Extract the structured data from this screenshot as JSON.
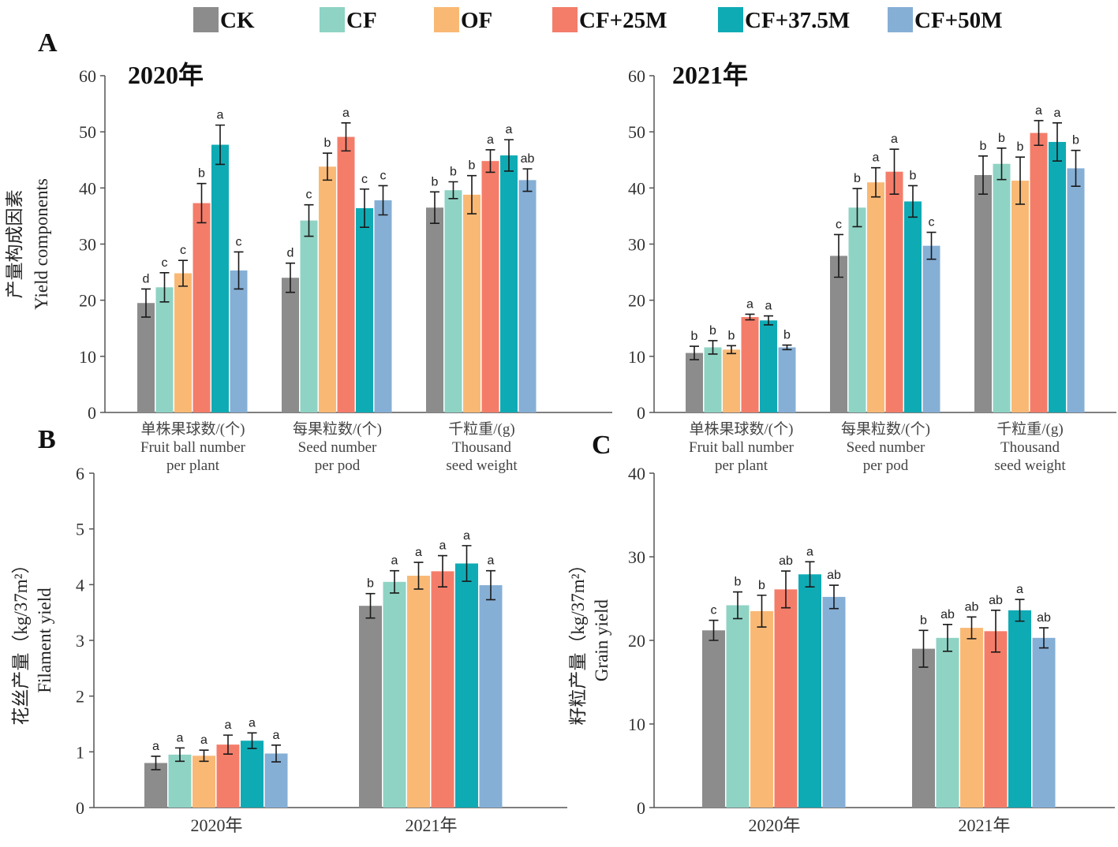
{
  "legend": [
    {
      "name": "CK",
      "color": "#8c8c8c"
    },
    {
      "name": "CF",
      "color": "#8fd3c4"
    },
    {
      "name": "OF",
      "color": "#f9b975"
    },
    {
      "name": "CF+25M",
      "color": "#f47d6a"
    },
    {
      "name": "CF+37.5M",
      "color": "#0fabb5"
    },
    {
      "name": "CF+50M",
      "color": "#86afd6"
    }
  ],
  "chart_data": [
    {
      "id": "A-2020",
      "panel_letter": "A",
      "type": "bar",
      "title": "2020年",
      "ylabel": "产量构成因素",
      "ylabel_en": "Yield components",
      "ylim": [
        0,
        60
      ],
      "yticks": [
        "0",
        "10",
        "20",
        "30",
        "40",
        "50",
        "60"
      ],
      "categories": [
        [
          "单株果球数/(个)",
          "Fruit ball number",
          "per plant"
        ],
        [
          "每果粒数/(个)",
          "Seed number",
          "per pod"
        ],
        [
          "千粒重/(g)",
          "Thousand",
          "seed weight"
        ]
      ],
      "series": [
        {
          "name": "CK",
          "values": [
            19.5,
            24,
            36.5
          ],
          "errors": [
            2.5,
            2.6,
            2.8
          ],
          "letters": [
            "d",
            "d",
            "b"
          ]
        },
        {
          "name": "CF",
          "values": [
            22.3,
            34.2,
            39.6
          ],
          "errors": [
            2.6,
            2.8,
            1.5
          ],
          "letters": [
            "c",
            "c",
            "b"
          ]
        },
        {
          "name": "OF",
          "values": [
            24.8,
            43.8,
            38.8
          ],
          "errors": [
            2.3,
            2.4,
            3.4
          ],
          "letters": [
            "c",
            "b",
            "b"
          ]
        },
        {
          "name": "CF+25M",
          "values": [
            37.3,
            49.1,
            44.8
          ],
          "errors": [
            3.5,
            2.5,
            2.0
          ],
          "letters": [
            "b",
            "a",
            "a"
          ]
        },
        {
          "name": "CF+37.5M",
          "values": [
            47.7,
            36.4,
            45.8
          ],
          "errors": [
            3.5,
            3.4,
            2.8
          ],
          "letters": [
            "a",
            "c",
            "a"
          ]
        },
        {
          "name": "CF+50M",
          "values": [
            25.3,
            37.8,
            41.4
          ],
          "errors": [
            3.3,
            2.6,
            2.0
          ],
          "letters": [
            "c",
            "c",
            "ab"
          ]
        }
      ]
    },
    {
      "id": "A-2021",
      "panel_letter": "",
      "type": "bar",
      "title": "2021年",
      "ylabel": "",
      "ylabel_en": "",
      "ylim": [
        0,
        60
      ],
      "yticks": [
        "0",
        "10",
        "20",
        "30",
        "40",
        "50",
        "60"
      ],
      "categories": [
        [
          "单株果球数/(个)",
          "Fruit ball number",
          "per plant"
        ],
        [
          "每果粒数/(个)",
          "Seed number",
          "per pod"
        ],
        [
          "千粒重/(g)",
          "Thousand",
          "seed weight"
        ]
      ],
      "series": [
        {
          "name": "CK",
          "values": [
            10.6,
            27.9,
            42.3
          ],
          "errors": [
            1.2,
            3.8,
            3.4
          ],
          "letters": [
            "b",
            "c",
            "b"
          ]
        },
        {
          "name": "CF",
          "values": [
            11.6,
            36.5,
            44.3
          ],
          "errors": [
            1.2,
            3.4,
            2.8
          ],
          "letters": [
            "b",
            "b",
            "b"
          ]
        },
        {
          "name": "OF",
          "values": [
            11.2,
            41.0,
            41.3
          ],
          "errors": [
            0.7,
            2.6,
            4.2
          ],
          "letters": [
            "b",
            "a",
            "b"
          ]
        },
        {
          "name": "CF+25M",
          "values": [
            17.0,
            42.9,
            49.8
          ],
          "errors": [
            0.5,
            4.0,
            2.2
          ],
          "letters": [
            "a",
            "a",
            "a"
          ]
        },
        {
          "name": "CF+37.5M",
          "values": [
            16.4,
            37.6,
            48.2
          ],
          "errors": [
            0.8,
            2.8,
            3.4
          ],
          "letters": [
            "a",
            "b",
            "a"
          ]
        },
        {
          "name": "CF+50M",
          "values": [
            11.6,
            29.7,
            43.5
          ],
          "errors": [
            0.4,
            2.4,
            3.2
          ],
          "letters": [
            "b",
            "c",
            "b"
          ]
        }
      ]
    },
    {
      "id": "B",
      "panel_letter": "B",
      "type": "bar",
      "title": "",
      "ylabel": "花丝产量（kg/37m²）",
      "ylabel_en": "Filament yield",
      "ylim": [
        0,
        6
      ],
      "yticks": [
        "0",
        "1",
        "2",
        "3",
        "4",
        "5",
        "6"
      ],
      "categories": [
        [
          "2020年"
        ],
        [
          "2021年"
        ]
      ],
      "series": [
        {
          "name": "CK",
          "values": [
            0.8,
            3.62
          ],
          "errors": [
            0.12,
            0.22
          ],
          "letters": [
            "a",
            "b"
          ]
        },
        {
          "name": "CF",
          "values": [
            0.95,
            4.05
          ],
          "errors": [
            0.12,
            0.2
          ],
          "letters": [
            "a",
            "a"
          ]
        },
        {
          "name": "OF",
          "values": [
            0.93,
            4.16
          ],
          "errors": [
            0.1,
            0.24
          ],
          "letters": [
            "a",
            "a"
          ]
        },
        {
          "name": "CF+25M",
          "values": [
            1.13,
            4.24
          ],
          "errors": [
            0.17,
            0.28
          ],
          "letters": [
            "a",
            "a"
          ]
        },
        {
          "name": "CF+37.5M",
          "values": [
            1.2,
            4.38
          ],
          "errors": [
            0.14,
            0.32
          ],
          "letters": [
            "a",
            "a"
          ]
        },
        {
          "name": "CF+50M",
          "values": [
            0.97,
            3.99
          ],
          "errors": [
            0.15,
            0.26
          ],
          "letters": [
            "a",
            "a"
          ]
        }
      ]
    },
    {
      "id": "C",
      "panel_letter": "C",
      "type": "bar",
      "title": "",
      "ylabel": "籽粒产量（kg/37m²）",
      "ylabel_en": "Grain yield",
      "ylim": [
        0,
        40
      ],
      "yticks": [
        "0",
        "10",
        "20",
        "30",
        "40"
      ],
      "categories": [
        [
          "2020年"
        ],
        [
          "2021年"
        ]
      ],
      "series": [
        {
          "name": "CK",
          "values": [
            21.2,
            19.0
          ],
          "errors": [
            1.2,
            2.2
          ],
          "letters": [
            "c",
            "b"
          ]
        },
        {
          "name": "CF",
          "values": [
            24.2,
            20.3
          ],
          "errors": [
            1.6,
            1.6
          ],
          "letters": [
            "b",
            "ab"
          ]
        },
        {
          "name": "OF",
          "values": [
            23.5,
            21.5
          ],
          "errors": [
            1.9,
            1.3
          ],
          "letters": [
            "b",
            "ab"
          ]
        },
        {
          "name": "CF+25M",
          "values": [
            26.1,
            21.1
          ],
          "errors": [
            2.2,
            2.5
          ],
          "letters": [
            "ab",
            "ab"
          ]
        },
        {
          "name": "CF+37.5M",
          "values": [
            27.9,
            23.6
          ],
          "errors": [
            1.5,
            1.3
          ],
          "letters": [
            "a",
            "a"
          ]
        },
        {
          "name": "CF+50M",
          "values": [
            25.2,
            20.3
          ],
          "errors": [
            1.4,
            1.2
          ],
          "letters": [
            "ab",
            "ab"
          ]
        }
      ]
    }
  ]
}
